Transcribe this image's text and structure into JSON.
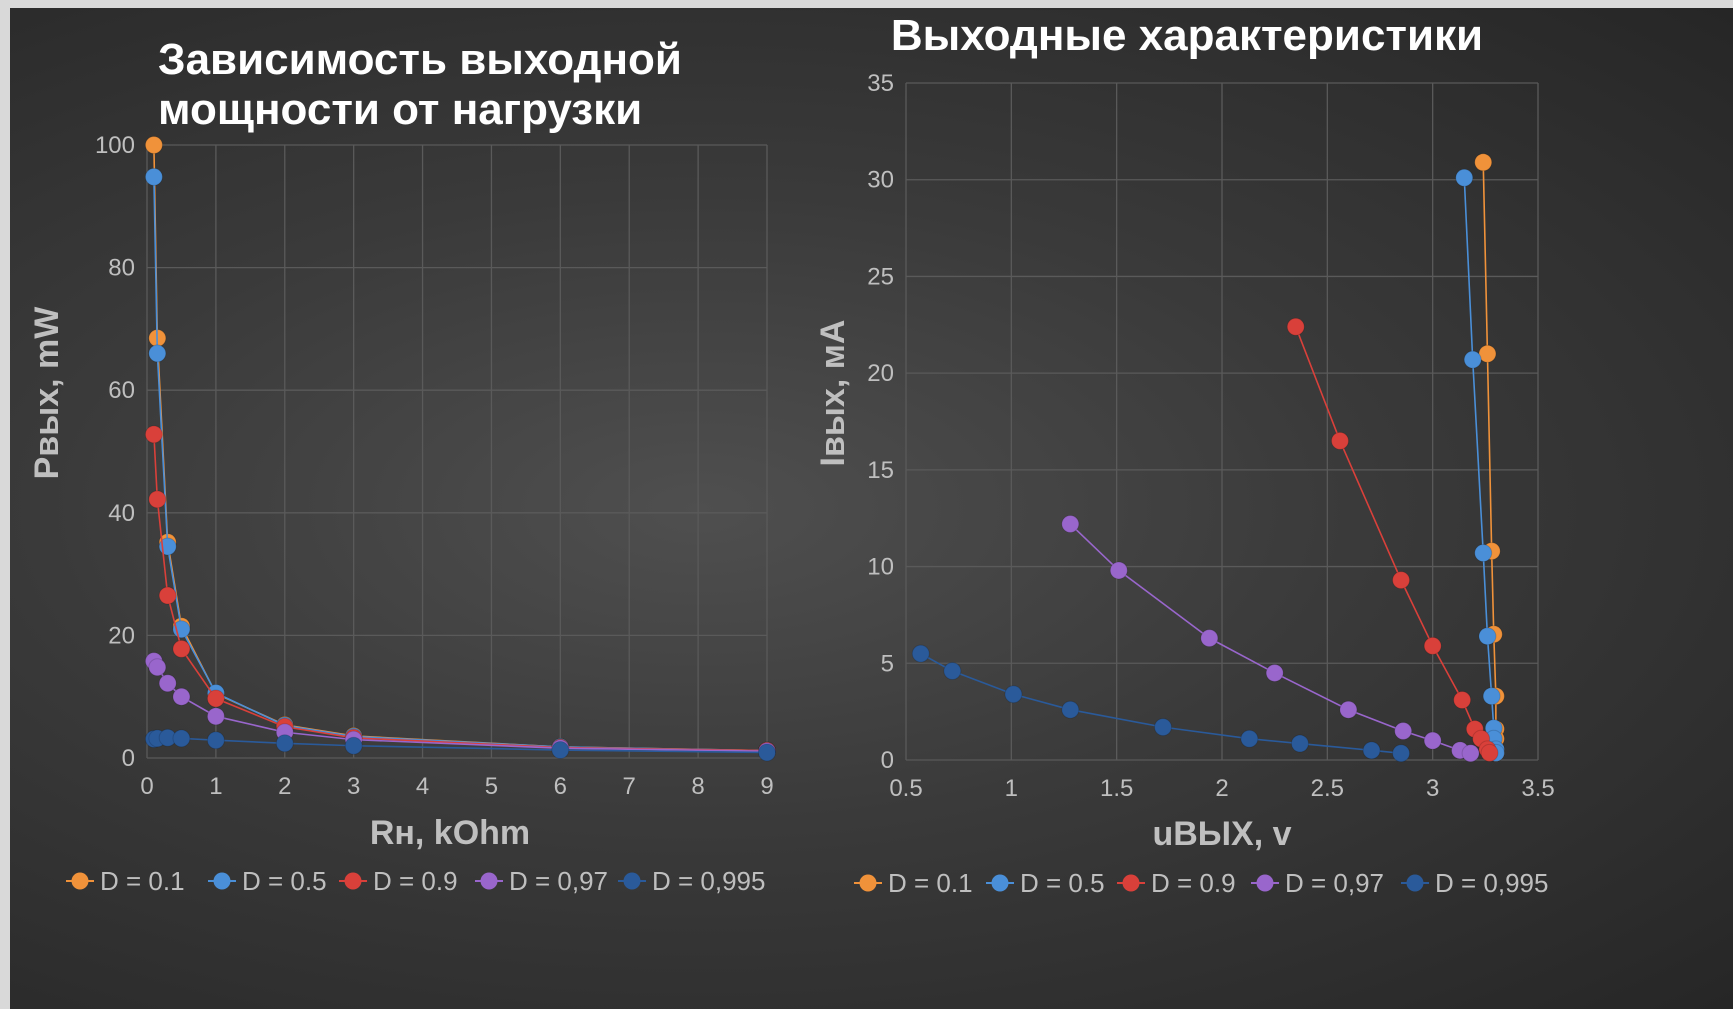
{
  "chart_data": [
    {
      "type": "scatter",
      "title": [
        "Зависимость выходной",
        "мощности от нагрузки"
      ],
      "xlabel": "Rн, kOhm",
      "ylabel": "Pвых, mW",
      "x_ticks": [
        "0",
        "1",
        "2",
        "3",
        "4",
        "5",
        "6",
        "7",
        "8",
        "9"
      ],
      "y_ticks": [
        "0",
        "20",
        "40",
        "60",
        "80",
        "100"
      ],
      "xlim": [
        0,
        9
      ],
      "ylim": [
        0,
        100
      ],
      "grid": true,
      "legend_position": "bottom",
      "series": [
        {
          "name": "D = 0.1",
          "color": "#f0923a",
          "points": [
            [
              0.1,
              100
            ],
            [
              0.15,
              68.5
            ],
            [
              0.3,
              35.2
            ],
            [
              0.5,
              21.5
            ],
            [
              1,
              10.5
            ],
            [
              2,
              5.4
            ],
            [
              3,
              3.6
            ],
            [
              6,
              1.8
            ],
            [
              9,
              1.2
            ]
          ]
        },
        {
          "name": "D = 0.5",
          "color": "#4a8fd8",
          "points": [
            [
              0.1,
              94.8
            ],
            [
              0.15,
              66
            ],
            [
              0.3,
              34.5
            ],
            [
              0.5,
              21
            ],
            [
              1,
              10.6
            ],
            [
              2,
              5.3
            ],
            [
              3,
              3.5
            ],
            [
              6,
              1.8
            ],
            [
              9,
              1.2
            ]
          ]
        },
        {
          "name": "D = 0.9",
          "color": "#d9403a",
          "points": [
            [
              0.1,
              52.8
            ],
            [
              0.15,
              42.2
            ],
            [
              0.3,
              26.5
            ],
            [
              0.5,
              17.8
            ],
            [
              1,
              9.7
            ],
            [
              2,
              5.1
            ],
            [
              3,
              3.3
            ],
            [
              6,
              1.7
            ],
            [
              9,
              1.2
            ]
          ]
        },
        {
          "name": "D = 0,97",
          "color": "#9966cc",
          "points": [
            [
              0.1,
              15.8
            ],
            [
              0.15,
              14.8
            ],
            [
              0.3,
              12.2
            ],
            [
              0.5,
              10
            ],
            [
              1,
              6.8
            ],
            [
              2,
              4.2
            ],
            [
              3,
              3
            ],
            [
              6,
              1.6
            ],
            [
              9,
              1.1
            ]
          ]
        },
        {
          "name": "D = 0,995",
          "color": "#2a5a9a",
          "points": [
            [
              0.1,
              3.1
            ],
            [
              0.15,
              3.2
            ],
            [
              0.3,
              3.3
            ],
            [
              0.5,
              3.2
            ],
            [
              1,
              2.9
            ],
            [
              2,
              2.4
            ],
            [
              3,
              2
            ],
            [
              6,
              1.3
            ],
            [
              9,
              0.9
            ]
          ]
        }
      ]
    },
    {
      "type": "scatter",
      "title": [
        "Выходные характеристики"
      ],
      "xlabel": "uВЫХ, v",
      "ylabel": "Iвых, мА",
      "x_ticks": [
        "0.5",
        "1",
        "1.5",
        "2",
        "2.5",
        "3",
        "3.5"
      ],
      "y_ticks": [
        "0",
        "5",
        "10",
        "15",
        "20",
        "25",
        "30",
        "35"
      ],
      "xlim": [
        0.5,
        3.5
      ],
      "ylim": [
        0,
        35
      ],
      "grid": true,
      "legend_position": "bottom",
      "series": [
        {
          "name": "D = 0.1",
          "color": "#f0923a",
          "points": [
            [
              3.24,
              30.9
            ],
            [
              3.26,
              21
            ],
            [
              3.28,
              10.8
            ],
            [
              3.29,
              6.5
            ],
            [
              3.3,
              3.3
            ],
            [
              3.3,
              1.6
            ],
            [
              3.3,
              1.1
            ],
            [
              3.3,
              0.55
            ],
            [
              3.3,
              0.37
            ]
          ]
        },
        {
          "name": "D = 0.5",
          "color": "#4a8fd8",
          "points": [
            [
              3.15,
              30.1
            ],
            [
              3.19,
              20.7
            ],
            [
              3.24,
              10.7
            ],
            [
              3.26,
              6.4
            ],
            [
              3.28,
              3.3
            ],
            [
              3.29,
              1.65
            ],
            [
              3.29,
              1.1
            ],
            [
              3.3,
              0.55
            ],
            [
              3.3,
              0.37
            ]
          ]
        },
        {
          "name": "D = 0.9",
          "color": "#d9403a",
          "points": [
            [
              2.35,
              22.4
            ],
            [
              2.56,
              16.5
            ],
            [
              2.85,
              9.3
            ],
            [
              3.0,
              5.9
            ],
            [
              3.14,
              3.1
            ],
            [
              3.2,
              1.6
            ],
            [
              3.23,
              1.1
            ],
            [
              3.26,
              0.55
            ],
            [
              3.27,
              0.37
            ]
          ]
        },
        {
          "name": "D = 0,97",
          "color": "#9966cc",
          "points": [
            [
              1.28,
              12.2
            ],
            [
              1.51,
              9.8
            ],
            [
              1.94,
              6.3
            ],
            [
              2.25,
              4.5
            ],
            [
              2.6,
              2.6
            ],
            [
              2.86,
              1.5
            ],
            [
              3.0,
              1.0
            ],
            [
              3.13,
              0.5
            ],
            [
              3.18,
              0.35
            ]
          ]
        },
        {
          "name": "D = 0,995",
          "color": "#2a5a9a",
          "points": [
            [
              0.57,
              5.5
            ],
            [
              0.72,
              4.6
            ],
            [
              1.01,
              3.4
            ],
            [
              1.28,
              2.6
            ],
            [
              1.72,
              1.7
            ],
            [
              2.13,
              1.1
            ],
            [
              2.37,
              0.85
            ],
            [
              2.71,
              0.5
            ],
            [
              2.85,
              0.35
            ]
          ]
        }
      ]
    }
  ]
}
